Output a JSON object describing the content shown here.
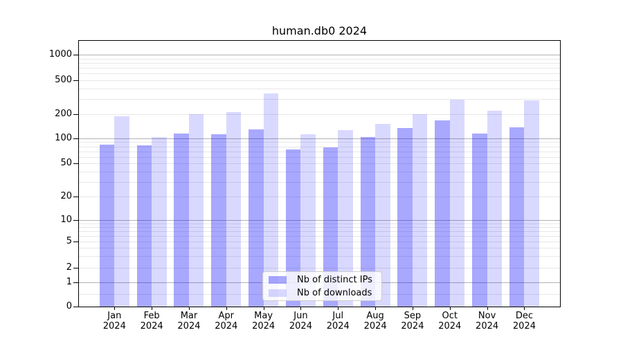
{
  "figure": {
    "title": "human.db0 2024"
  },
  "colors": {
    "bar_distinct_ips": "rgba(0,0,255,0.34)",
    "bar_downloads": "rgba(0,0,255,0.15)",
    "grid_major": "#b2b2b2",
    "grid_minor": "#e7e7e7",
    "spine": "#000000",
    "legend_border": "#cccccc"
  },
  "chart_data": {
    "type": "bar",
    "title": "human.db0 2024",
    "categories": [
      "Jan",
      "Feb",
      "Mar",
      "Apr",
      "May",
      "Jun",
      "Jul",
      "Aug",
      "Sep",
      "Oct",
      "Nov",
      "Dec"
    ],
    "category_year": "2024",
    "series": [
      {
        "name": "Nb of distinct IPs",
        "color": "rgba(0,0,255,0.34)",
        "values": [
          84,
          82,
          115,
          112,
          129,
          73,
          78,
          105,
          134,
          165,
          115,
          137
        ]
      },
      {
        "name": "Nb of downloads",
        "color": "rgba(0,0,255,0.15)",
        "values": [
          187,
          104,
          198,
          210,
          350,
          113,
          127,
          150,
          199,
          294,
          218,
          290
        ]
      }
    ],
    "y_axis": {
      "scale": "asinh-log (logarithmic above ~5, compressed linear near 0)",
      "tick_labels": [
        "1000",
        "500",
        "200",
        "100",
        "50",
        "20",
        "10",
        "5",
        "2",
        "1",
        "0"
      ],
      "tick_values": [
        1000,
        500,
        200,
        100,
        50,
        20,
        10,
        5,
        2,
        1,
        0
      ],
      "major_gridlines": [
        1000,
        100,
        10,
        1
      ],
      "minor_gridlines": [
        900,
        800,
        700,
        600,
        500,
        400,
        300,
        200,
        90,
        80,
        70,
        60,
        50,
        40,
        30,
        20,
        9,
        8,
        7,
        6,
        5,
        4,
        3,
        2,
        0.5
      ],
      "ylim": [
        0,
        1490
      ]
    },
    "legend_position": "lower center",
    "grid": true
  }
}
